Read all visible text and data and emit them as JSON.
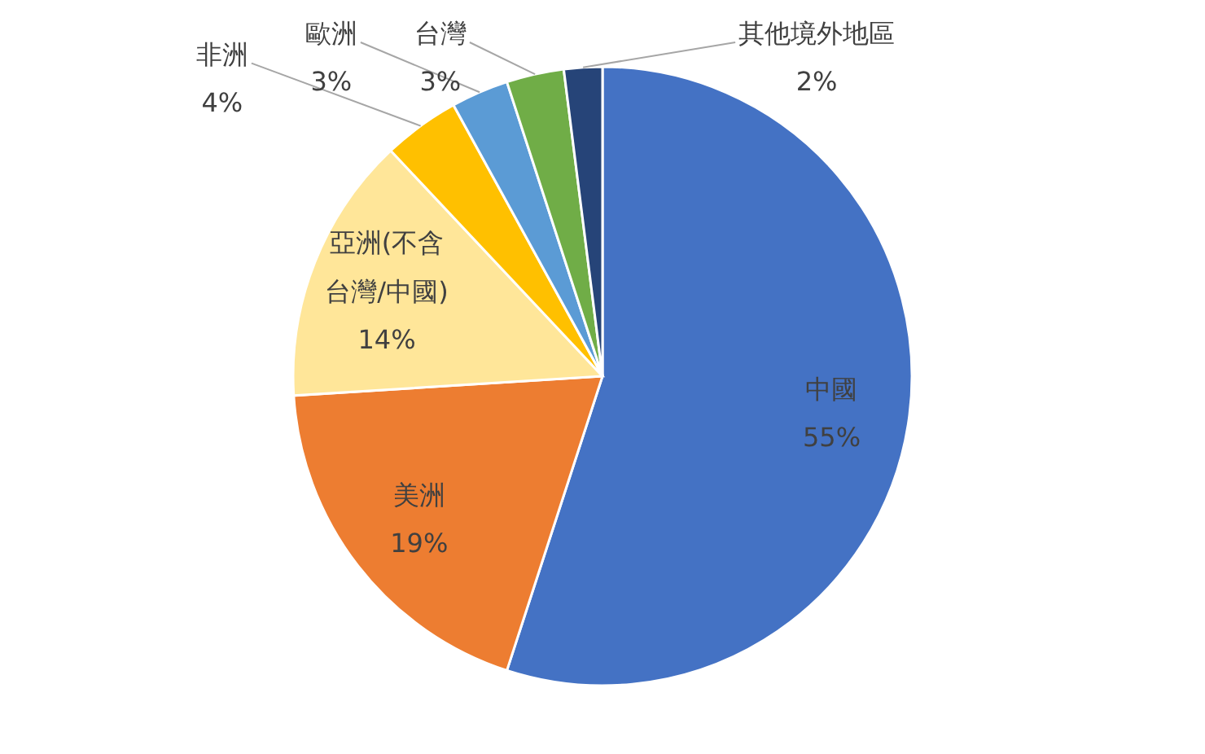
{
  "chart_data": {
    "type": "pie",
    "categories": [
      "中國",
      "美洲",
      "亞洲(不含台灣/中國)",
      "非洲",
      "歐洲",
      "台灣",
      "其他境外地區"
    ],
    "values": [
      55,
      19,
      14,
      4,
      3,
      3,
      2
    ],
    "colors": [
      "#4472c4",
      "#ed7d31",
      "#ffe699",
      "#ffc000",
      "#5b9bd5",
      "#70ad47",
      "#264478"
    ],
    "value_labels": [
      "55%",
      "19%",
      "14%",
      "4%",
      "3%",
      "3%",
      "2%"
    ]
  }
}
